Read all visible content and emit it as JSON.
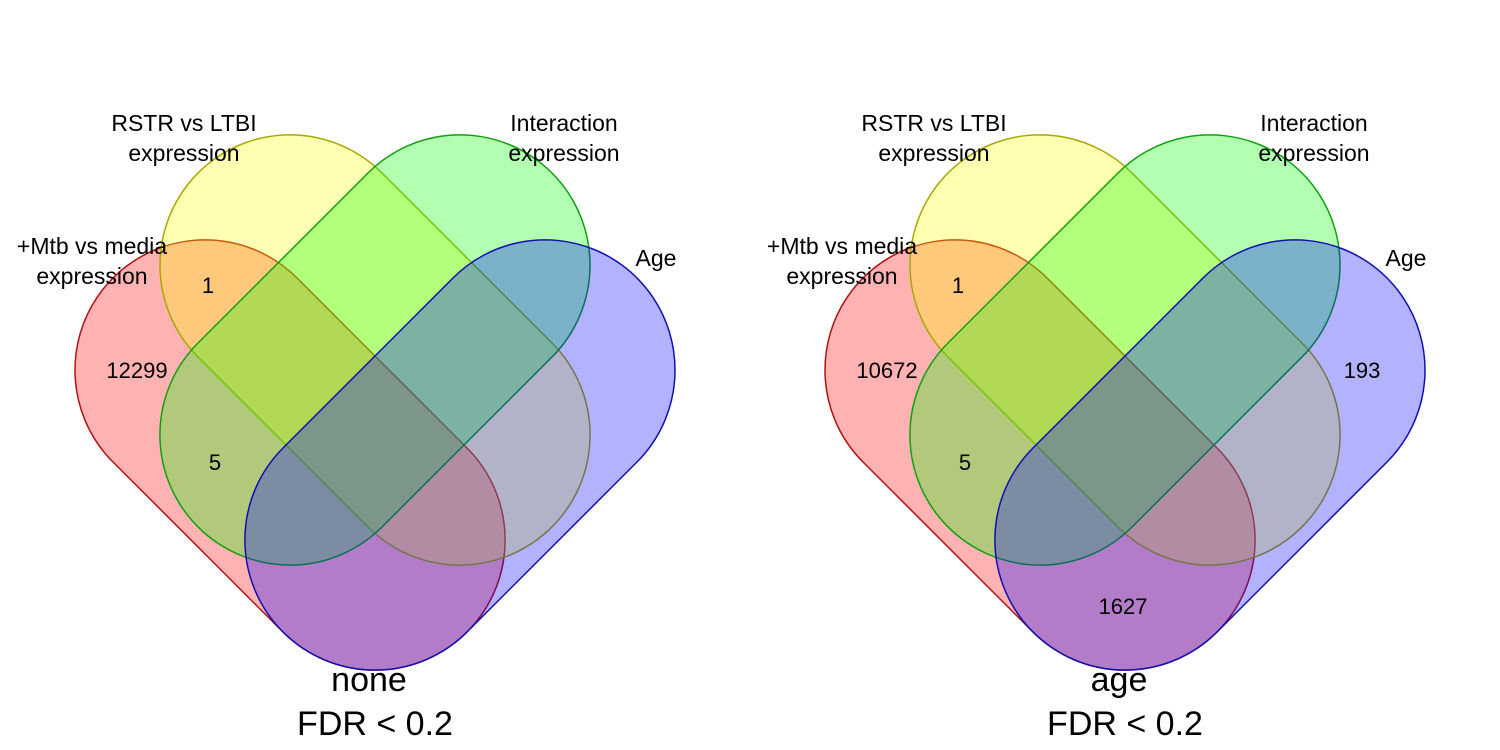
{
  "colors": {
    "mtb": "#ff0000",
    "rstr": "#ffff00",
    "interaction": "#00ff00",
    "age": "#0000ff",
    "mtb_stroke": "#b01010",
    "rstr_stroke": "#a8a800",
    "interaction_stroke": "#10a010",
    "age_stroke": "#1010b0"
  },
  "panels": [
    {
      "id": "none",
      "title": "none",
      "subtitle": "FDR < 0.2",
      "sets": {
        "mtb": [
          "+Mtb vs media",
          "expression"
        ],
        "rstr": [
          "RSTR vs LTBI",
          "expression"
        ],
        "interaction": [
          "Interaction",
          "expression"
        ],
        "age": [
          "Age"
        ]
      },
      "counts": {
        "mtb_only": "12299",
        "mtb_rstr": "1",
        "mtb_rstr_interaction": "5"
      }
    },
    {
      "id": "age",
      "title": "age",
      "subtitle": "FDR < 0.2",
      "sets": {
        "mtb": [
          "+Mtb vs media",
          "expression"
        ],
        "rstr": [
          "RSTR vs LTBI",
          "expression"
        ],
        "interaction": [
          "Interaction",
          "expression"
        ],
        "age": [
          "Age"
        ]
      },
      "counts": {
        "mtb_only": "10672",
        "mtb_rstr": "1",
        "mtb_rstr_interaction": "5",
        "age_only": "193",
        "mtb_age": "1627"
      }
    }
  ]
}
